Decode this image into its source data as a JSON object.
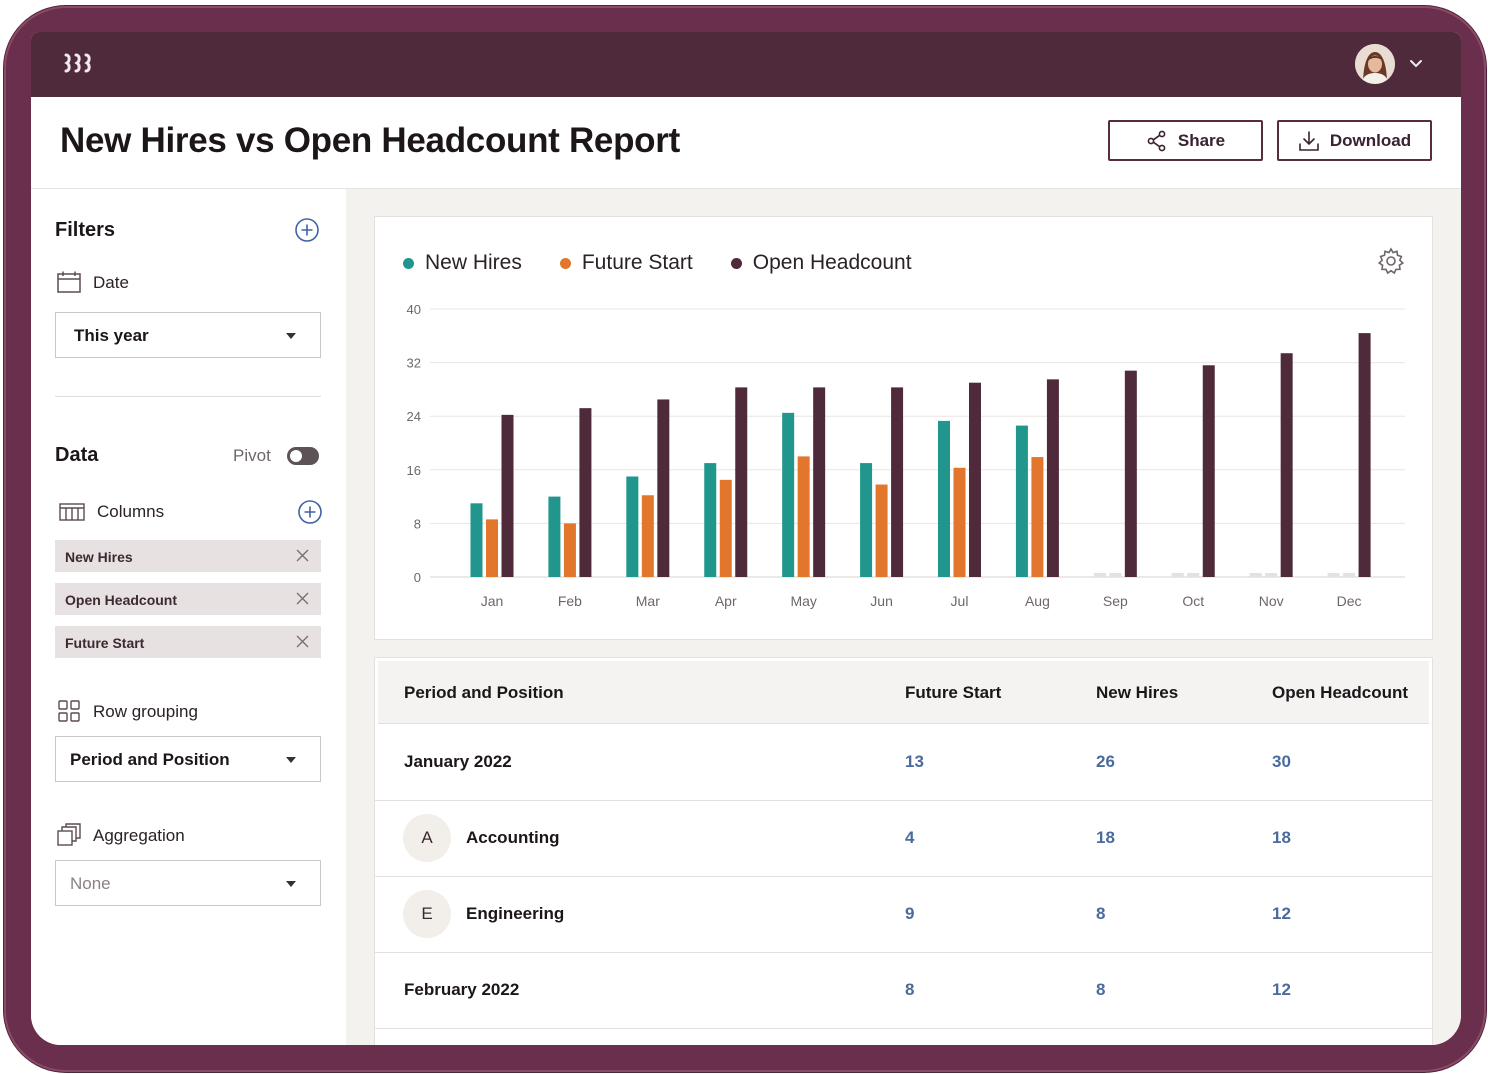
{
  "page": {
    "title": "New Hires vs Open Headcount Report"
  },
  "actions": {
    "share_label": "Share",
    "download_label": "Download"
  },
  "filters": {
    "heading": "Filters",
    "date_label": "Date",
    "date_value": "This year"
  },
  "data_section": {
    "heading": "Data",
    "pivot_label": "Pivot",
    "pivot_on": false,
    "columns_label": "Columns",
    "columns": [
      "New Hires",
      "Open Headcount",
      "Future Start"
    ],
    "row_grouping_label": "Row grouping",
    "row_grouping_value": "Period and Position",
    "aggregation_label": "Aggregation",
    "aggregation_value": "None"
  },
  "colors": {
    "new_hires": "#21968d",
    "future_start": "#e1762c",
    "open_headcount": "#4e2a3b",
    "frame": "#6a2f4c"
  },
  "chart_data": {
    "type": "bar",
    "categories": [
      "Jan",
      "Feb",
      "Mar",
      "Apr",
      "May",
      "Jun",
      "Jul",
      "Aug",
      "Sep",
      "Oct",
      "Nov",
      "Dec"
    ],
    "series": [
      {
        "name": "New Hires",
        "values": [
          11,
          12,
          15,
          17,
          24.5,
          17,
          23.3,
          22.6,
          null,
          null,
          null,
          null
        ]
      },
      {
        "name": "Future Start",
        "values": [
          8.6,
          8,
          12.2,
          14.5,
          18,
          13.8,
          16.3,
          17.9,
          null,
          null,
          null,
          null
        ]
      },
      {
        "name": "Open Headcount",
        "values": [
          24.2,
          25.2,
          26.5,
          28.3,
          28.3,
          28.3,
          29,
          29.5,
          30.8,
          31.6,
          33.4,
          36.4
        ]
      }
    ],
    "yticks": [
      0,
      8,
      16,
      24,
      32,
      40
    ],
    "ylim": [
      0,
      40
    ],
    "legend_position": "top-left",
    "grid": true
  },
  "table": {
    "headers": [
      "Period and Position",
      "Future Start",
      "New Hires",
      "Open Headcount"
    ],
    "rows": [
      {
        "label": "January 2022",
        "badge": "",
        "future_start": "13",
        "new_hires": "26",
        "open_headcount": "30"
      },
      {
        "label": "Accounting",
        "badge": "A",
        "future_start": "4",
        "new_hires": "18",
        "open_headcount": "18"
      },
      {
        "label": "Engineering",
        "badge": "E",
        "future_start": "9",
        "new_hires": "8",
        "open_headcount": "12"
      },
      {
        "label": "February 2022",
        "badge": "",
        "future_start": "8",
        "new_hires": "8",
        "open_headcount": "12"
      }
    ]
  }
}
